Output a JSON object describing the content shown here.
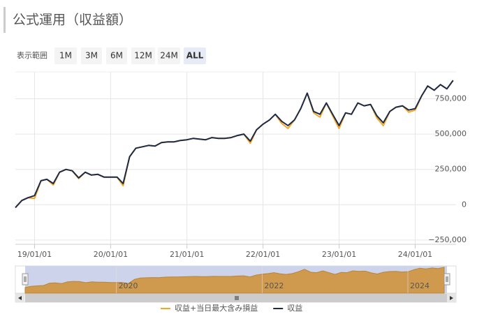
{
  "range_selector": {
    "label": "表示範囲",
    "buttons": [
      "1M",
      "3M",
      "6M",
      "12M",
      "24M",
      "ALL"
    ],
    "selected": 5
  },
  "chart_data": {
    "type": "line",
    "title": "公式運用（収益額）",
    "x": [
      "2018-10-01",
      "2018-11-01",
      "2018-12-01",
      "2019-01-01",
      "2019-02-01",
      "2019-03-01",
      "2019-04-01",
      "2019-05-01",
      "2019-06-01",
      "2019-07-01",
      "2019-08-01",
      "2019-09-01",
      "2019-10-01",
      "2019-11-01",
      "2019-12-01",
      "2020-01-01",
      "2020-02-01",
      "2020-03-01",
      "2020-04-01",
      "2020-05-01",
      "2020-06-01",
      "2020-07-01",
      "2020-08-01",
      "2020-09-01",
      "2020-10-01",
      "2020-11-01",
      "2020-12-01",
      "2021-01-01",
      "2021-02-01",
      "2021-03-01",
      "2021-04-01",
      "2021-05-01",
      "2021-06-01",
      "2021-07-01",
      "2021-08-01",
      "2021-09-01",
      "2021-10-01",
      "2021-11-01",
      "2021-12-01",
      "2022-01-01",
      "2022-02-01",
      "2022-03-01",
      "2022-04-01",
      "2022-05-01",
      "2022-06-01",
      "2022-07-01",
      "2022-08-01",
      "2022-09-01",
      "2022-10-01",
      "2022-11-01",
      "2022-12-01",
      "2023-01-01",
      "2023-02-01",
      "2023-03-01",
      "2023-04-01",
      "2023-05-01",
      "2023-06-01",
      "2023-07-01",
      "2023-08-01",
      "2023-09-01",
      "2023-10-01",
      "2023-11-01",
      "2023-12-01",
      "2024-01-01",
      "2024-02-01",
      "2024-03-01",
      "2024-04-01",
      "2024-05-01",
      "2024-06-01",
      "2024-07-01"
    ],
    "series": [
      {
        "name": "収益+当日最大含み損益",
        "color": "#f5a623",
        "values": [
          -20000,
          30000,
          50000,
          45000,
          170000,
          180000,
          140000,
          230000,
          250000,
          240000,
          185000,
          230000,
          210000,
          215000,
          195000,
          195000,
          195000,
          135000,
          340000,
          400000,
          410000,
          420000,
          415000,
          440000,
          445000,
          445000,
          455000,
          460000,
          470000,
          465000,
          460000,
          475000,
          470000,
          470000,
          475000,
          490000,
          500000,
          435000,
          530000,
          570000,
          600000,
          640000,
          575000,
          540000,
          600000,
          680000,
          790000,
          650000,
          620000,
          720000,
          630000,
          540000,
          650000,
          640000,
          720000,
          700000,
          710000,
          615000,
          560000,
          660000,
          690000,
          700000,
          655000,
          670000,
          770000,
          840000,
          810000,
          850000,
          820000,
          880000
        ]
      },
      {
        "name": "収益",
        "color": "#1c2a4a",
        "values": [
          -20000,
          30000,
          50000,
          65000,
          170000,
          180000,
          150000,
          230000,
          250000,
          240000,
          190000,
          230000,
          210000,
          215000,
          195000,
          195000,
          195000,
          150000,
          340000,
          400000,
          410000,
          420000,
          415000,
          440000,
          445000,
          445000,
          455000,
          460000,
          470000,
          465000,
          460000,
          475000,
          470000,
          470000,
          475000,
          490000,
          500000,
          450000,
          530000,
          570000,
          600000,
          640000,
          590000,
          560000,
          600000,
          680000,
          790000,
          660000,
          640000,
          720000,
          640000,
          560000,
          650000,
          640000,
          720000,
          700000,
          710000,
          630000,
          580000,
          660000,
          690000,
          700000,
          670000,
          680000,
          770000,
          840000,
          810000,
          850000,
          820000,
          880000
        ]
      }
    ],
    "xlim": [
      "2018-10-01",
      "2024-07-15"
    ],
    "xticks": [
      {
        "value": "2019-01-01",
        "label": "19/01/01"
      },
      {
        "value": "2020-01-01",
        "label": "20/01/01"
      },
      {
        "value": "2021-01-01",
        "label": "21/01/01"
      },
      {
        "value": "2022-01-01",
        "label": "22/01/01"
      },
      {
        "value": "2023-01-01",
        "label": "23/01/01"
      },
      {
        "value": "2024-01-01",
        "label": "24/01/01"
      }
    ],
    "ylim": [
      -280000,
      940000
    ],
    "yticks": [
      {
        "value": -250000,
        "label": "−250,000"
      },
      0,
      {
        "value": 250000,
        "label": "250,000"
      },
      {
        "value": 500000,
        "label": "500,000"
      },
      {
        "value": 750000,
        "label": "750,000"
      }
    ],
    "grid": true,
    "navigator_ticks": [
      {
        "value": "2020-01-01",
        "label": "2020"
      },
      {
        "value": "2022-01-01",
        "label": "2022"
      },
      {
        "value": "2024-01-01",
        "label": "2024"
      }
    ]
  }
}
